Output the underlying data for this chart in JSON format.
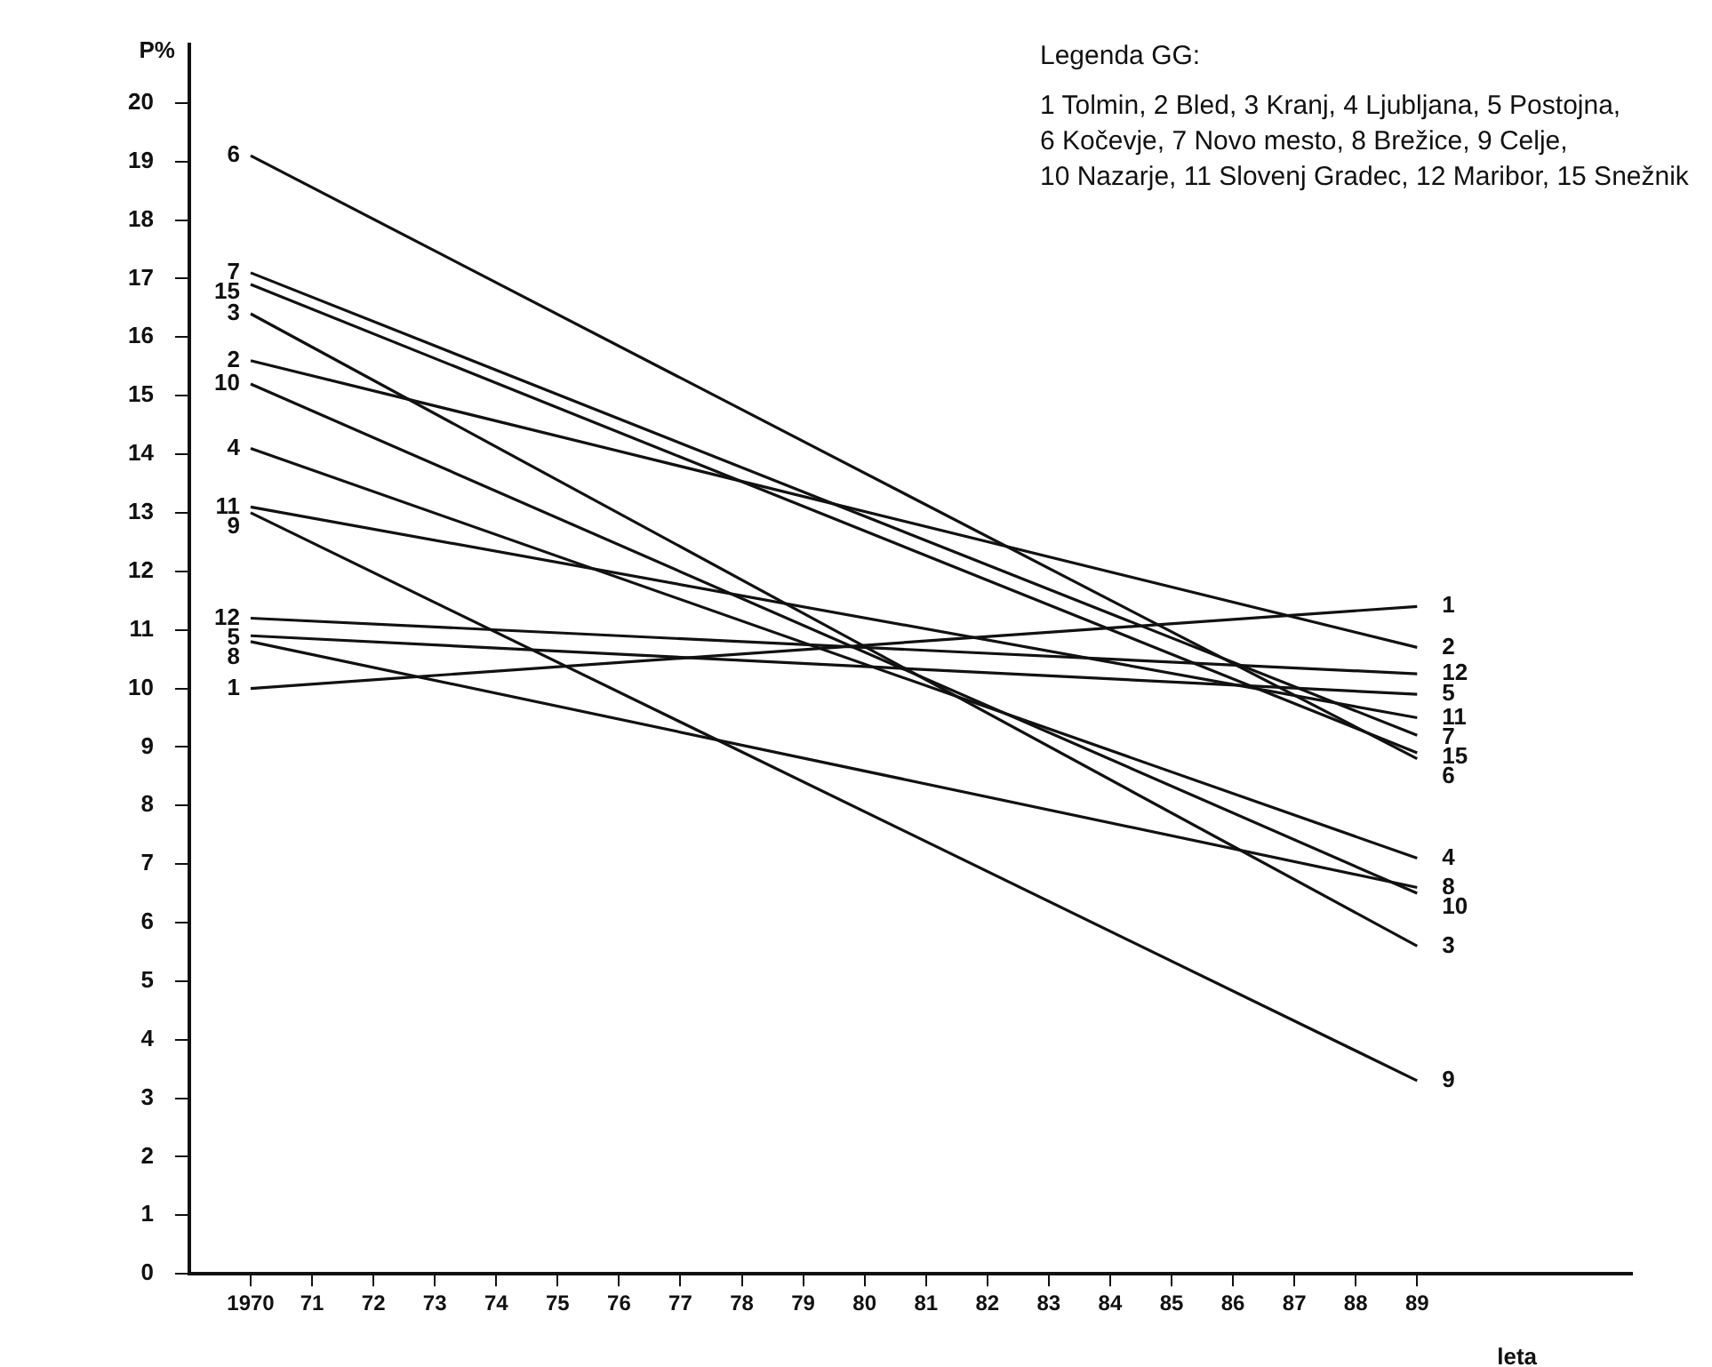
{
  "chart_data": {
    "type": "line",
    "xlabel": "leta",
    "ylabel": "P%",
    "annotations": [
      "Legenda GG:",
      "1 Tolmin, 2 Bled, 3 Kranj, 4 Ljubljana, 5 Postojna,",
      "6 Kočevje, 7 Novo mesto, 8 Brežice, 9 Celje,",
      "10 Nazarje, 11 Slovenj Gradec, 12 Maribor, 15 Snežnik"
    ],
    "xlim": [
      1969,
      1992.5
    ],
    "xticks": [
      {
        "value": 1970,
        "label": "1970"
      },
      {
        "value": 1971,
        "label": "71"
      },
      {
        "value": 1972,
        "label": "72"
      },
      {
        "value": 1973,
        "label": "73"
      },
      {
        "value": 1974,
        "label": "74"
      },
      {
        "value": 1975,
        "label": "75"
      },
      {
        "value": 1976,
        "label": "76"
      },
      {
        "value": 1977,
        "label": "77"
      },
      {
        "value": 1978,
        "label": "78"
      },
      {
        "value": 1979,
        "label": "79"
      },
      {
        "value": 1980,
        "label": "80"
      },
      {
        "value": 1981,
        "label": "81"
      },
      {
        "value": 1982,
        "label": "82"
      },
      {
        "value": 1983,
        "label": "83"
      },
      {
        "value": 1984,
        "label": "84"
      },
      {
        "value": 1985,
        "label": "85"
      },
      {
        "value": 1986,
        "label": "86"
      },
      {
        "value": 1987,
        "label": "87"
      },
      {
        "value": 1988,
        "label": "88"
      },
      {
        "value": 1989,
        "label": "89"
      }
    ],
    "ylim": [
      0,
      21
    ],
    "yticks": [
      0,
      1,
      2,
      3,
      4,
      5,
      6,
      7,
      8,
      9,
      10,
      11,
      12,
      13,
      14,
      15,
      16,
      17,
      18,
      19,
      20
    ],
    "grid": false,
    "legend": false,
    "marker": "none",
    "line_style": "solid",
    "x": [
      1970,
      1989
    ],
    "series": [
      {
        "name": "1",
        "color": "#111111",
        "values": [
          10.0,
          11.4
        ]
      },
      {
        "name": "2",
        "color": "#111111",
        "values": [
          15.6,
          10.7
        ]
      },
      {
        "name": "3",
        "color": "#111111",
        "values": [
          16.4,
          5.6
        ]
      },
      {
        "name": "4",
        "color": "#111111",
        "values": [
          14.1,
          7.1
        ]
      },
      {
        "name": "5",
        "color": "#111111",
        "values": [
          10.9,
          9.9
        ]
      },
      {
        "name": "6",
        "color": "#111111",
        "values": [
          19.1,
          8.8
        ]
      },
      {
        "name": "7",
        "color": "#111111",
        "values": [
          17.1,
          9.2
        ]
      },
      {
        "name": "8",
        "color": "#111111",
        "values": [
          10.8,
          6.6
        ]
      },
      {
        "name": "9",
        "color": "#111111",
        "values": [
          13.0,
          3.3
        ]
      },
      {
        "name": "10",
        "color": "#111111",
        "values": [
          15.2,
          6.5
        ]
      },
      {
        "name": "11",
        "color": "#111111",
        "values": [
          13.1,
          9.5
        ]
      },
      {
        "name": "12",
        "color": "#111111",
        "values": [
          11.2,
          10.25
        ]
      },
      {
        "name": "15",
        "color": "#111111",
        "values": [
          16.9,
          8.9
        ]
      }
    ]
  }
}
